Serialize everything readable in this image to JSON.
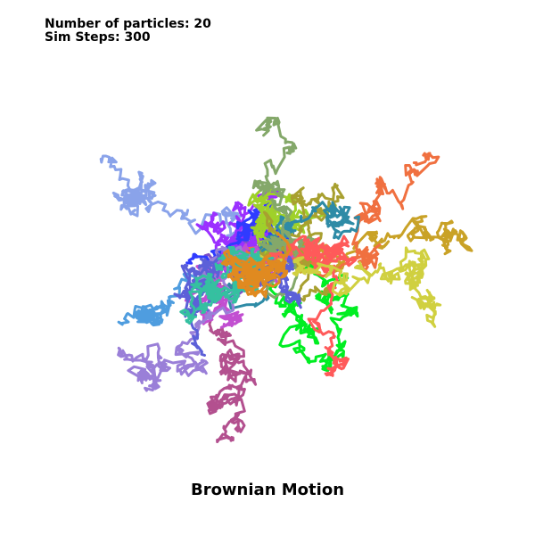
{
  "info": {
    "particles_text": "Number of particles: 20",
    "steps_text": "Sim Steps: 300"
  },
  "title": "Brownian Motion",
  "simulation": {
    "particle_count": 20,
    "steps": 300,
    "trail_colors": [
      "#8aa3ea",
      "#c9a227",
      "#4f9ddf",
      "#b3508f",
      "#7f4fc6",
      "#9b30ff",
      "#2f3bff",
      "#00ee22",
      "#f07040",
      "#9fd12a",
      "#a8a030",
      "#2e8ba6",
      "#84a86a",
      "#c24fd1",
      "#ff5a5a",
      "#9a7fd8",
      "#d0d040",
      "#5c60d8",
      "#35c0a0",
      "#e08a20"
    ]
  }
}
